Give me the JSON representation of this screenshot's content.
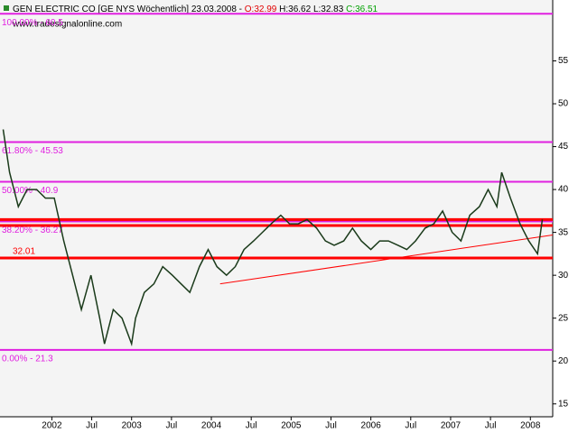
{
  "chart_data": {
    "type": "line",
    "title": "GEN ELECTRIC CO [GE NYS  Wöchentlich] 23.03.2008 -",
    "open_label": "O:32.99",
    "high_low_label": "H:36.62 L:32.83",
    "close_label": "C:36.51",
    "source": "www.tradesignalonline.com",
    "color": "#1a3a1a",
    "x": [
      2001.39,
      2001.47,
      2001.58,
      2001.69,
      2001.81,
      2001.92,
      2002.03,
      2002.15,
      2002.26,
      2002.37,
      2002.49,
      2002.6,
      2002.66,
      2002.77,
      2002.88,
      2003.0,
      2003.05,
      2003.16,
      2003.28,
      2003.39,
      2003.51,
      2003.62,
      2003.73,
      2003.85,
      2003.96,
      2004.07,
      2004.19,
      2004.3,
      2004.41,
      2004.53,
      2004.64,
      2004.75,
      2004.87,
      2004.98,
      2005.09,
      2005.2,
      2005.32,
      2005.43,
      2005.54,
      2005.66,
      2005.77,
      2005.88,
      2006.0,
      2006.11,
      2006.22,
      2006.34,
      2006.45,
      2006.56,
      2006.68,
      2006.79,
      2006.9,
      2007.02,
      2007.13,
      2007.24,
      2007.36,
      2007.47,
      2007.58,
      2007.64,
      2007.75,
      2007.87,
      2007.98,
      2008.09,
      2008.15
    ],
    "values": [
      47,
      42,
      38,
      40,
      40,
      39,
      39,
      34,
      30,
      26,
      30,
      25,
      22,
      26,
      25,
      22,
      25,
      28,
      29,
      31,
      30,
      29,
      28,
      31,
      33,
      31,
      30,
      31,
      33,
      34,
      35,
      36,
      37,
      36,
      36,
      36.5,
      35.5,
      34,
      33.5,
      34,
      35.5,
      34,
      33,
      34,
      34,
      33.5,
      33,
      34,
      35.5,
      36,
      37.5,
      35,
      34,
      37,
      38,
      40,
      38,
      42,
      39,
      36,
      34,
      32.5,
      36.5
    ],
    "xlim": [
      2001.35,
      2008.28
    ],
    "ylim": [
      13.5,
      62.1
    ],
    "xticks": [
      {
        "value": 2002,
        "label": "2002"
      },
      {
        "value": 2002.5,
        "label": "Jul"
      },
      {
        "value": 2003,
        "label": "2003"
      },
      {
        "value": 2003.5,
        "label": "Jul"
      },
      {
        "value": 2004,
        "label": "2004"
      },
      {
        "value": 2004.5,
        "label": "Jul"
      },
      {
        "value": 2005,
        "label": "2005"
      },
      {
        "value": 2005.5,
        "label": "Jul"
      },
      {
        "value": 2006,
        "label": "2006"
      },
      {
        "value": 2006.5,
        "label": "Jul"
      },
      {
        "value": 2007,
        "label": "2007"
      },
      {
        "value": 2007.5,
        "label": "Jul"
      },
      {
        "value": 2008,
        "label": "2008"
      }
    ],
    "yticks": [
      15,
      20,
      25,
      30,
      35,
      40,
      45,
      50,
      55
    ],
    "fib_color": "#e020e0",
    "fib_levels": [
      {
        "value": 60.5,
        "label": "100.00% - 60.5"
      },
      {
        "value": 45.53,
        "label": "61.80% - 45.53"
      },
      {
        "value": 40.9,
        "label": "50.00% - 40.9"
      },
      {
        "value": 36.27,
        "label": "38.20% - 36.27"
      },
      {
        "value": 21.3,
        "label": "0.00% - 21.3"
      }
    ],
    "support_color": "#ff0000",
    "support_lines": [
      {
        "value": 32.01,
        "label": "32.01"
      },
      {
        "value": 35.8
      },
      {
        "value": 36.5
      }
    ],
    "trendline": {
      "x": [
        2004.11,
        2008.28
      ],
      "values": [
        29,
        34.7
      ]
    }
  }
}
